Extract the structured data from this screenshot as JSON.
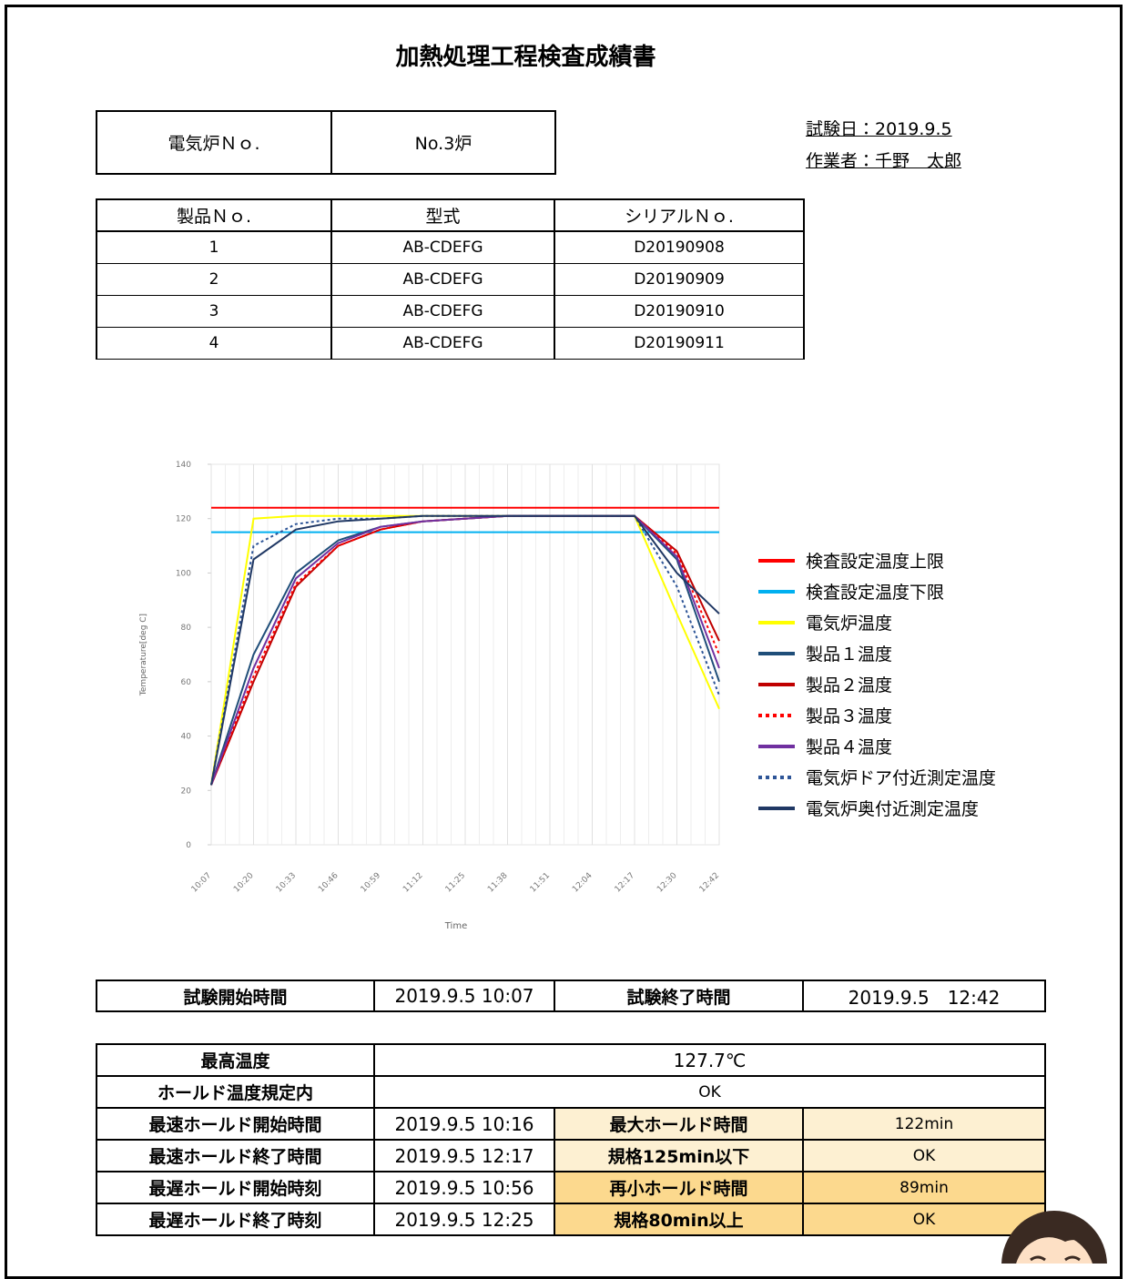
{
  "header": {
    "title": "加熱処理工程検査成績書",
    "test_date": "試験日：2019.9.5",
    "operator": "作業者：千野　太郎"
  },
  "furnace": {
    "label": "電気炉Ｎｏ.",
    "value": "No.3炉"
  },
  "products": {
    "header": [
      "製品Ｎｏ.",
      "型式",
      "シリアルＮｏ."
    ],
    "rows": [
      [
        "1",
        "AB-CDEFG",
        "D20190908"
      ],
      [
        "2",
        "AB-CDEFG",
        "D20190909"
      ],
      [
        "3",
        "AB-CDEFG",
        "D20190910"
      ],
      [
        "4",
        "AB-CDEFG",
        "D20190911"
      ]
    ]
  },
  "chart_data": {
    "type": "line",
    "y_label": "Temperature[deg C]",
    "x_label": "Time",
    "x": [
      "10:07",
      "10:20",
      "10:33",
      "10:46",
      "10:59",
      "11:12",
      "11:25",
      "11:38",
      "11:51",
      "12:04",
      "12:17",
      "12:30",
      "12:42"
    ],
    "ylim": [
      0,
      140
    ],
    "yticks": [
      0,
      20,
      40,
      60,
      80,
      100,
      120,
      140
    ],
    "grid": true,
    "series": [
      {
        "name": "検査設定温度上限",
        "color": "#ff0000",
        "style": "solid",
        "values": [
          124,
          124,
          124,
          124,
          124,
          124,
          124,
          124,
          124,
          124,
          124,
          124,
          124
        ]
      },
      {
        "name": "検査設定温度下限",
        "color": "#00b0f0",
        "style": "solid",
        "values": [
          115,
          115,
          115,
          115,
          115,
          115,
          115,
          115,
          115,
          115,
          115,
          115,
          115
        ]
      },
      {
        "name": "電気炉温度",
        "color": "#ffff00",
        "style": "solid",
        "values": [
          22,
          120,
          121,
          121,
          121,
          121,
          121,
          121,
          121,
          121,
          121,
          85,
          50
        ]
      },
      {
        "name": "製品１温度",
        "color": "#1f4e79",
        "style": "solid",
        "values": [
          22,
          70,
          100,
          112,
          117,
          119,
          120,
          121,
          121,
          121,
          121,
          105,
          60
        ]
      },
      {
        "name": "製品２温度",
        "color": "#c00000",
        "style": "solid",
        "values": [
          22,
          60,
          95,
          110,
          116,
          119,
          120,
          121,
          121,
          121,
          121,
          108,
          75
        ]
      },
      {
        "name": "製品３温度",
        "color": "#ff0000",
        "style": "dotted",
        "values": [
          22,
          62,
          96,
          110,
          116,
          119,
          120,
          121,
          121,
          121,
          121,
          107,
          70
        ]
      },
      {
        "name": "製品４温度",
        "color": "#7030a0",
        "style": "solid",
        "values": [
          22,
          65,
          98,
          111,
          117,
          119,
          120,
          121,
          121,
          121,
          121,
          106,
          65
        ]
      },
      {
        "name": "電気炉ドア付近測定温度",
        "color": "#2e5597",
        "style": "dotted",
        "values": [
          22,
          110,
          118,
          120,
          120,
          121,
          121,
          121,
          121,
          121,
          121,
          95,
          55
        ]
      },
      {
        "name": "電気炉奥付近測定温度",
        "color": "#203864",
        "style": "solid",
        "values": [
          22,
          105,
          116,
          119,
          120,
          121,
          121,
          121,
          121,
          121,
          121,
          100,
          85
        ]
      }
    ]
  },
  "times": [
    "試験開始時間",
    "2019.9.5 10:07",
    "試験終了時間",
    "2019.9.5　12:42"
  ],
  "results": [
    [
      "最高温度",
      "127.7℃"
    ],
    [
      "ホールド温度規定内",
      "OK"
    ],
    [
      "最速ホールド開始時間",
      "2019.9.5 10:16",
      "最大ホールド時間",
      "122min"
    ],
    [
      "最速ホールド終了時間",
      "2019.9.5 12:17",
      "規格125min以下",
      "OK"
    ],
    [
      "最遅ホールド開始時刻",
      "2019.9.5 10:56",
      "再小ホールド時間",
      "89min"
    ],
    [
      "最遅ホールド終了時刻",
      "2019.9.5 12:25",
      "規格80min以上",
      "OK"
    ]
  ]
}
